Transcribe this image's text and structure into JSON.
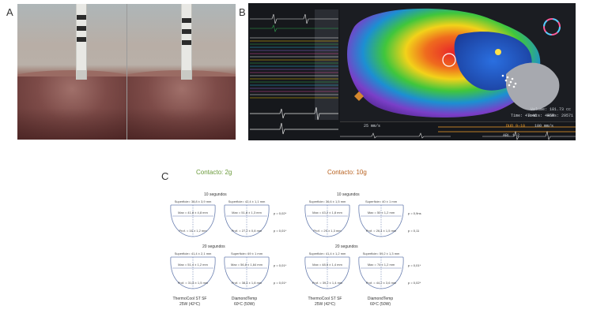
{
  "panels": {
    "a_label": "A",
    "b_label": "B",
    "c_label": "C"
  },
  "mapping_readout": {
    "volume": "Volume: 181.73 cc",
    "time": "Time: 47:46",
    "beats": "Beats: 4450",
    "egms": "EGMs: 29571",
    "abl_label": "ABL 1-2",
    "duo_label": "DUO 9-10",
    "speed": "25 mm/s",
    "speed2": "100 mm/s"
  },
  "figure_c": {
    "group_left_title": "Contacto: 2g",
    "group_right_title": "Contacto: 10g",
    "group_left_color": "#6a9a3a",
    "group_right_color": "#b8611f",
    "time_10": "10 segundos",
    "time_20": "20 segundos",
    "catheter_a_line1": "ThermoCool ST SF",
    "catheter_a_line2": "25W (42ºC)",
    "catheter_b_line1": "DiamondTemp",
    "catheter_b_line2": "60ºC (50W)",
    "lesions": [
      {
        "surface": "Superficie= 38,8 ± 3,9 mm",
        "max": "Max = 41,8 ± 4,8 mm",
        "depth": "Prof. = 16 ± 1,2 mm"
      },
      {
        "surface": "Superficie= 42,4 ± 1,1 mm",
        "max": "Max = 51,8 ± 1,3 mm",
        "depth": "Prof. = 27,2 ± 0,8 mm",
        "p_top": "p = 0,02*",
        "p_bottom": "p = 0,01*"
      },
      {
        "surface": "Superficie= 41,4 ± 2,1 mm",
        "max": "Max = 51,4 ± 1,2 mm",
        "depth": "Prof. = 31,8 ± 1,5 mm"
      },
      {
        "surface": "Superficie= 69 ± 1 mm",
        "max": "Max = 56,8 ± 1,64 mm",
        "depth": "Prof. = 38,4 ± 1,8 mm",
        "p_top": "p = 0,01*",
        "p_bottom": "p = 0,01*"
      },
      {
        "surface": "Superficie= 36,6 ± 1,5 mm",
        "max": "Max = 43,2 ± 1,8 mm",
        "depth": "Prof. = 29 ± 1,3 mm"
      },
      {
        "surface": "Superficie= 40 ± 1 mm",
        "max": "Max = 50 ± 1,2 mm",
        "depth": "Prof. = 26,4 ± 1,5 mm",
        "p_top": "p = 0,9ns",
        "p_bottom": "p = 0,11"
      },
      {
        "surface": "Superficie= 41,4 ± 1,2 mm",
        "max": "Max = 48,5 ± 1,4 mm",
        "depth": "Prof. = 39,2 ± 1,4 mm"
      },
      {
        "surface": "Superficie= 59,2 ± 1,3 mm",
        "max": "Max = 74 ± 1,2 mm",
        "depth": "Prof. = 44,2 ± 3,6 mm",
        "p_top": "p = 0,01*",
        "p_bottom": "p = 0,02*"
      }
    ]
  }
}
